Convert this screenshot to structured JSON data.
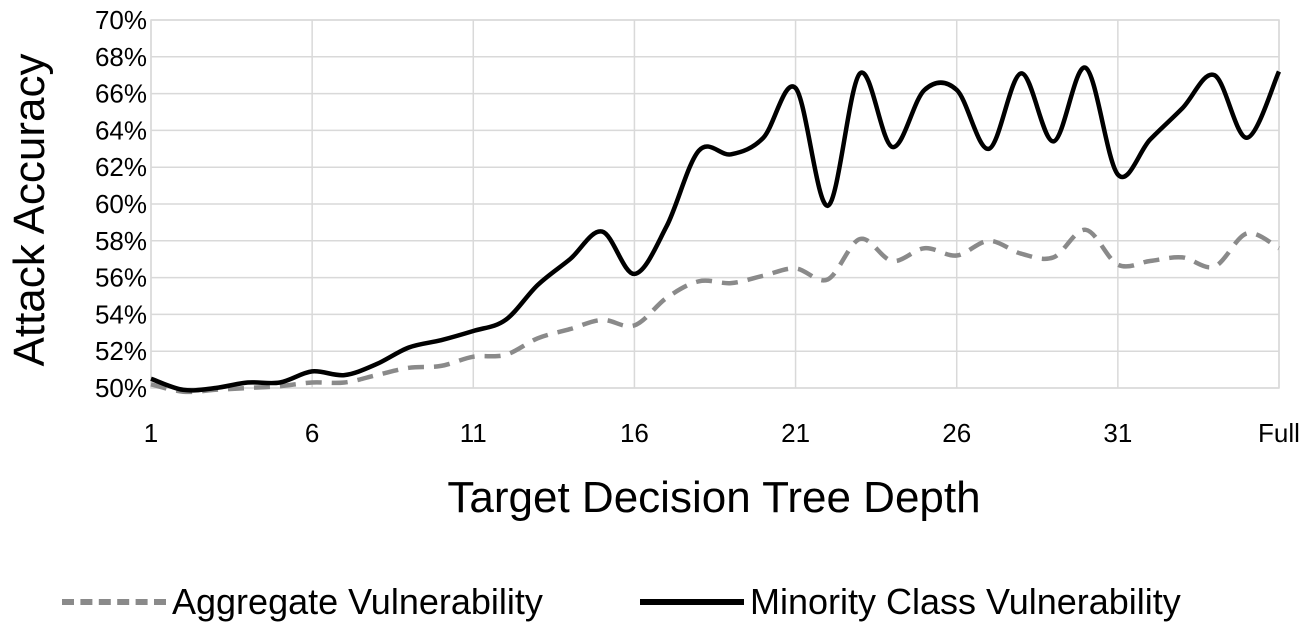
{
  "chart_data": {
    "type": "line",
    "xlabel": "Target Decision Tree Depth",
    "ylabel": "Attack Accuracy",
    "categories": [
      "1",
      "2",
      "3",
      "4",
      "5",
      "6",
      "7",
      "8",
      "9",
      "10",
      "11",
      "12",
      "13",
      "14",
      "15",
      "16",
      "17",
      "18",
      "19",
      "20",
      "21",
      "22",
      "23",
      "24",
      "25",
      "26",
      "27",
      "28",
      "29",
      "30",
      "31",
      "32",
      "33",
      "34",
      "35",
      "Full"
    ],
    "x_tick_labels": [
      "1",
      "6",
      "11",
      "16",
      "21",
      "26",
      "31",
      "Full"
    ],
    "y_tick_labels": [
      "50%",
      "52%",
      "54%",
      "56%",
      "58%",
      "60%",
      "62%",
      "64%",
      "66%",
      "68%",
      "70%"
    ],
    "ylim": [
      50,
      70
    ],
    "grid": true,
    "legend_position": "bottom",
    "series": [
      {
        "name": "Aggregate Vulnerability",
        "style": "dashed",
        "color": "#8a8a8a",
        "values": [
          50.2,
          49.8,
          49.9,
          50.0,
          50.1,
          50.3,
          50.3,
          50.7,
          51.1,
          51.2,
          51.7,
          51.8,
          52.7,
          53.2,
          53.7,
          53.4,
          54.9,
          55.8,
          55.7,
          56.1,
          56.5,
          55.9,
          58.1,
          56.9,
          57.6,
          57.2,
          58.0,
          57.3,
          57.1,
          58.6,
          56.7,
          56.9,
          57.1,
          56.6,
          58.4,
          57.6
        ]
      },
      {
        "name": "Minority Class Vulnerability",
        "style": "solid",
        "color": "#000000",
        "values": [
          50.5,
          49.9,
          50.0,
          50.3,
          50.3,
          50.9,
          50.7,
          51.3,
          52.2,
          52.6,
          53.1,
          53.7,
          55.6,
          57.0,
          58.5,
          56.2,
          58.8,
          62.9,
          62.7,
          63.6,
          66.3,
          59.9,
          67.1,
          63.1,
          66.2,
          66.2,
          63.0,
          67.1,
          63.4,
          67.4,
          61.6,
          63.5,
          65.2,
          67.0,
          63.6,
          67.2
        ]
      }
    ]
  }
}
